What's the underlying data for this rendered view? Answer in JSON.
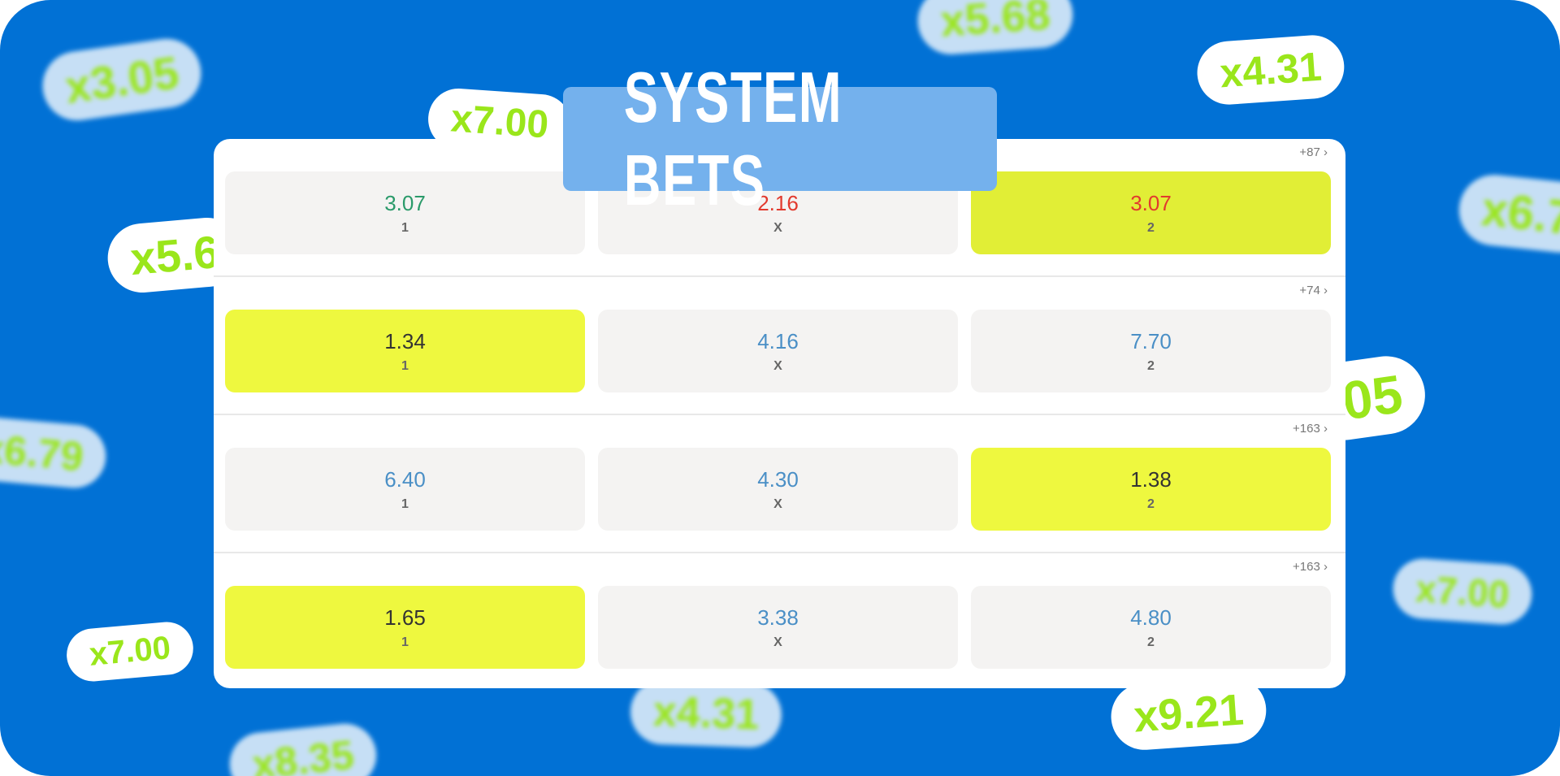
{
  "title": "SYSTEM BETS",
  "colors": {
    "background": "#0171d5",
    "title_box": "#74b1ed",
    "selected": "#eef83f",
    "cell": "#f4f3f2",
    "odd_default": "#4a8fc6",
    "odd_up": "#2a9a6a",
    "odd_down": "#e23a2e",
    "chip_text": "#9ae61b"
  },
  "chips": [
    "x3.05",
    "x5.68",
    "x4.31",
    "x7.00",
    "x5.6",
    "x6.7",
    "x6.79",
    ".05",
    "x7.00",
    "x7.00",
    "x4.31",
    "x9.21",
    "x8.35"
  ],
  "rows": [
    {
      "more": "+87 ›",
      "cells": [
        {
          "odd": "3.07",
          "label": "1"
        },
        {
          "odd": "2.16",
          "label": "X"
        },
        {
          "odd": "3.07",
          "label": "2",
          "selected": true
        }
      ]
    },
    {
      "more": "+74 ›",
      "cells": [
        {
          "odd": "1.34",
          "label": "1",
          "selected": true
        },
        {
          "odd": "4.16",
          "label": "X"
        },
        {
          "odd": "7.70",
          "label": "2"
        }
      ]
    },
    {
      "more": "+163 ›",
      "cells": [
        {
          "odd": "6.40",
          "label": "1"
        },
        {
          "odd": "4.30",
          "label": "X"
        },
        {
          "odd": "1.38",
          "label": "2",
          "selected": true
        }
      ]
    },
    {
      "more": "+163 ›",
      "cells": [
        {
          "odd": "1.65",
          "label": "1",
          "selected": true
        },
        {
          "odd": "3.38",
          "label": "X"
        },
        {
          "odd": "4.80",
          "label": "2"
        }
      ]
    }
  ]
}
